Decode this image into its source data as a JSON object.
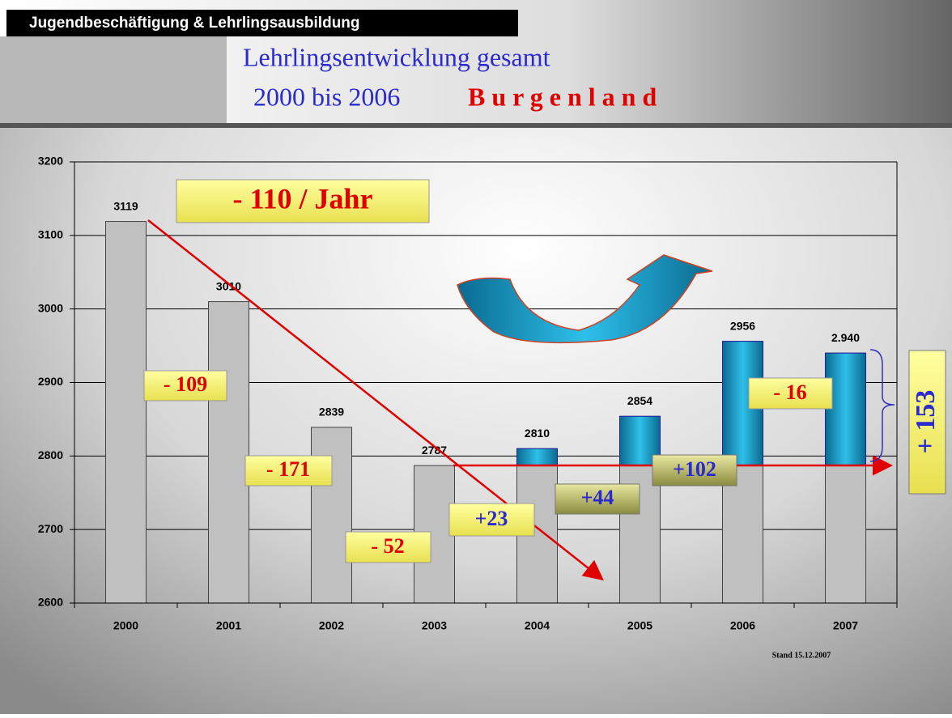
{
  "chart_data": {
    "type": "bar",
    "header": "Jugendbeschäftigung & Lehrlingsausbildung",
    "title": "Lehrlingsentwicklung gesamt",
    "subtitle": "2000 bis 2006",
    "region": "B u r g e n l a n d",
    "categories": [
      "2000",
      "2001",
      "2002",
      "2003",
      "2004",
      "2005",
      "2006",
      "2007"
    ],
    "values": [
      3119,
      3010,
      2839,
      2787,
      2810,
      2854,
      2956,
      2940
    ],
    "value_labels": [
      "3119",
      "3010",
      "2839",
      "2787",
      "2810",
      "2854",
      "2956",
      "2.940"
    ],
    "color": "#c0c0c0",
    "highlight_color": "#1aa9d6",
    "ylim": [
      2600,
      3200
    ],
    "yticks": [
      2600,
      2700,
      2800,
      2900,
      3000,
      3100,
      3200
    ],
    "grid": true,
    "annotations": [
      "- 110 / Jahr",
      "- 109",
      "- 171",
      "- 52",
      "+23",
      "+44",
      "+102",
      "- 16",
      "+ 153"
    ],
    "note": "Stand 15.12.2007"
  }
}
